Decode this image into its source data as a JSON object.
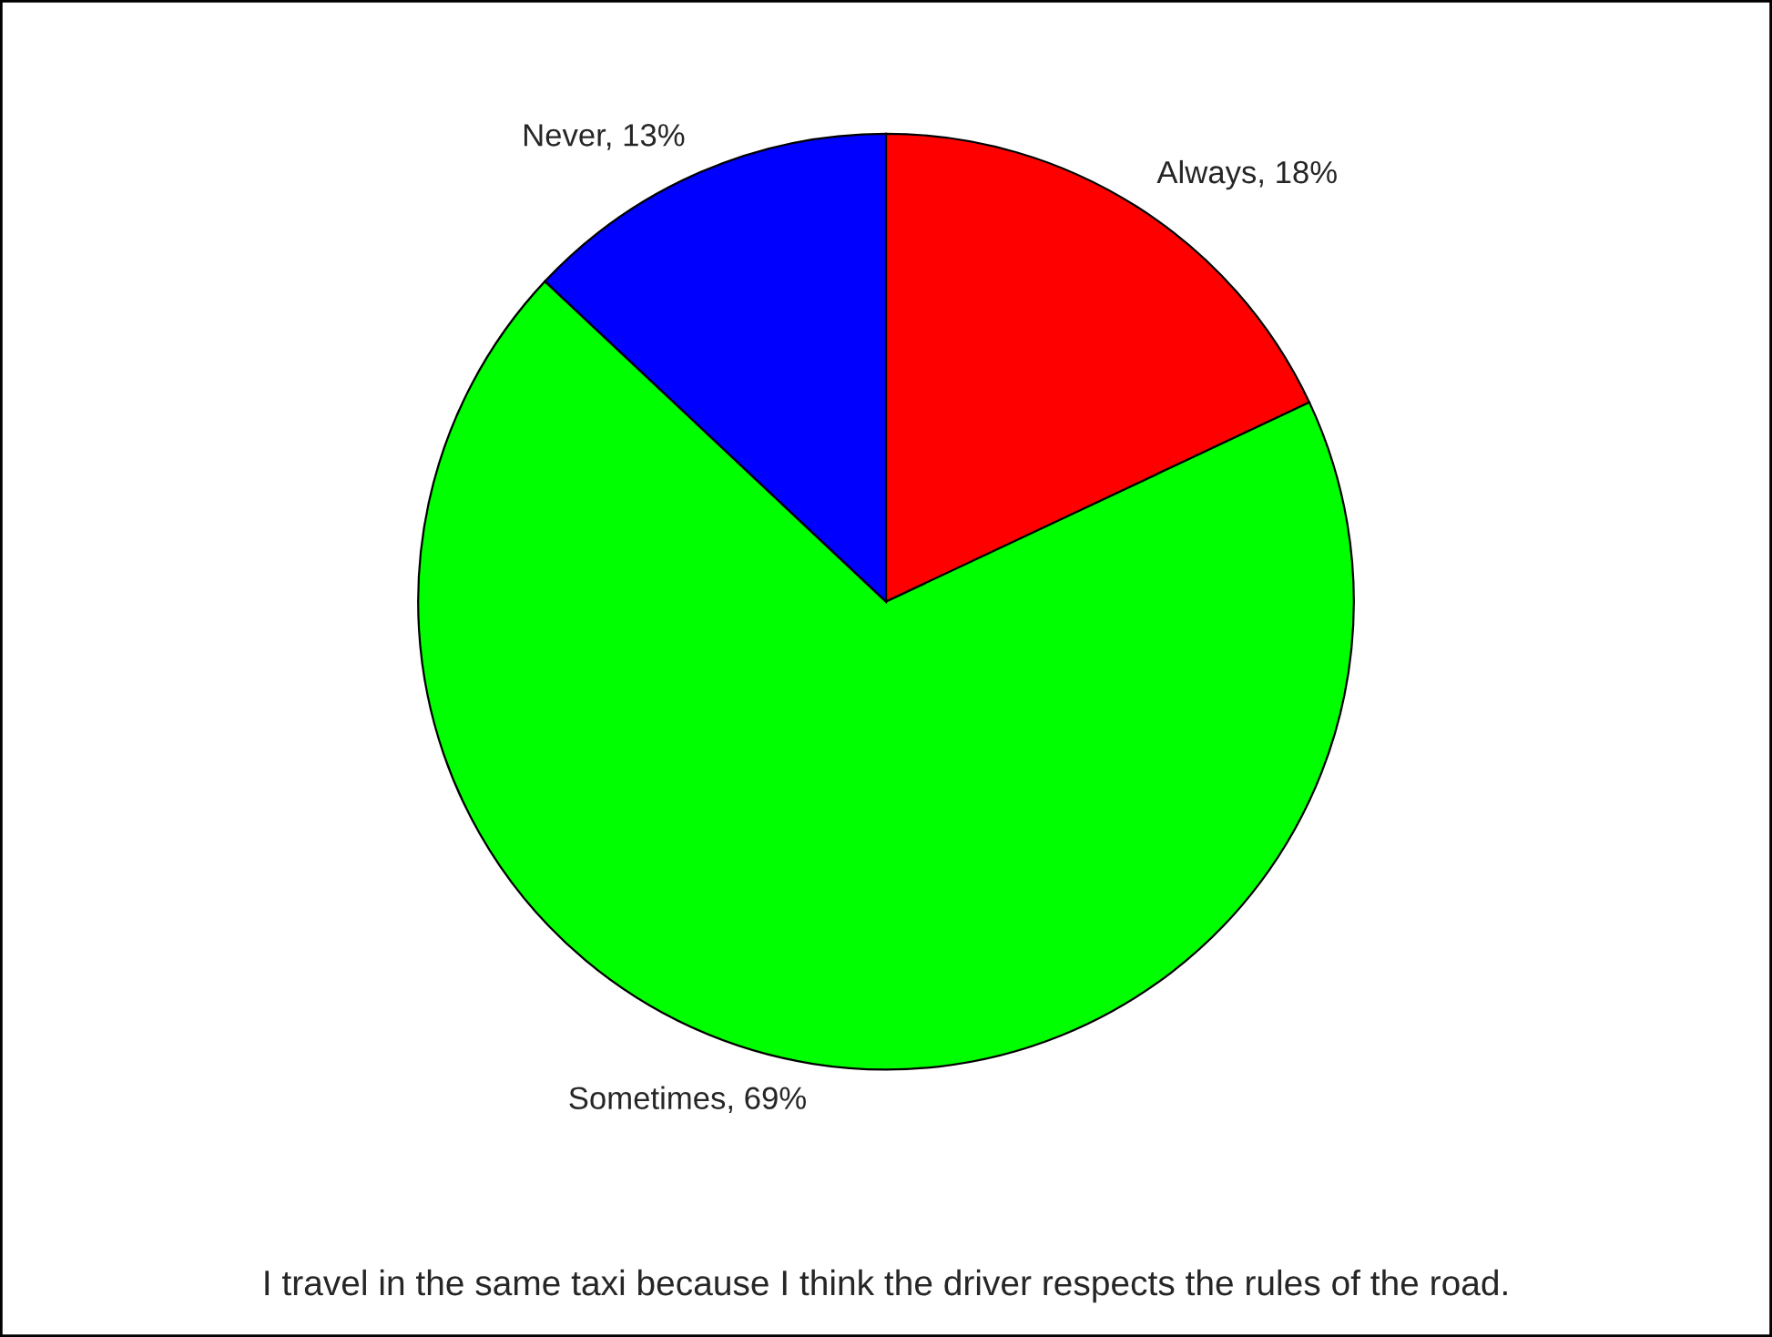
{
  "chart_data": {
    "type": "pie",
    "title": "I travel in the same taxi because I think the driver respects the rules of the road.",
    "categories": [
      "Always",
      "Sometimes",
      "Never"
    ],
    "values": [
      18,
      69,
      13
    ],
    "value_labels": [
      "18%",
      "69%",
      "13%"
    ],
    "colors": [
      "#ff0000",
      "#00ff00",
      "#0000ff"
    ]
  }
}
